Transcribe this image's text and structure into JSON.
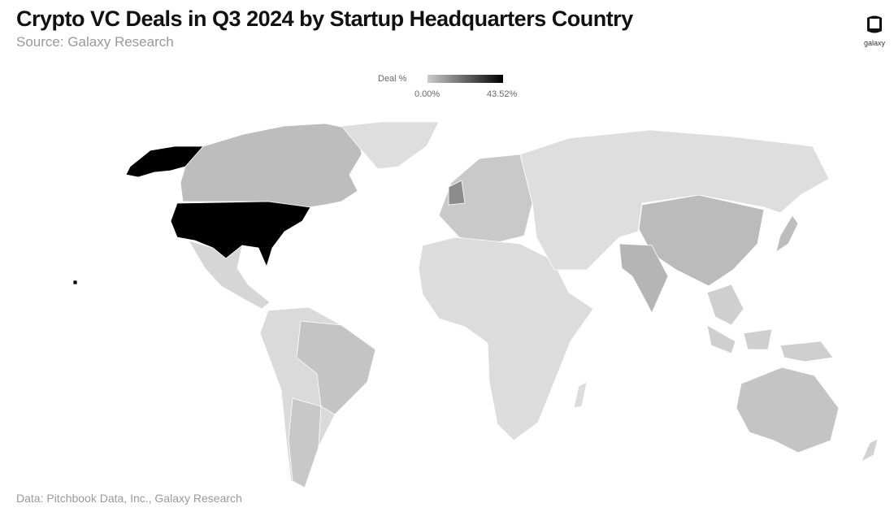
{
  "header": {
    "title": "Crypto VC Deals in Q3 2024 by Startup Headquarters Country",
    "subtitle": "Source: Galaxy Research"
  },
  "logo": {
    "text": "galaxy"
  },
  "footer": {
    "text": "Data: Pitchbook Data, Inc., Galaxy Research"
  },
  "chart_data": {
    "type": "choropleth",
    "legend": {
      "label": "Deal %",
      "min_label": "0.00%",
      "max_label": "43.52%",
      "min": 0,
      "max": 43.52,
      "min_color": "#cccccc",
      "max_color": "#000000"
    },
    "regions": [
      {
        "name": "United States",
        "fill": "#000000",
        "value": 43.52
      },
      {
        "name": "Alaska",
        "fill": "#000000"
      },
      {
        "name": "Canada",
        "fill": "#bdbdbd"
      },
      {
        "name": "Greenland",
        "fill": "#dedede"
      },
      {
        "name": "Mexico and Central America",
        "fill": "#d6d6d6"
      },
      {
        "name": "South America",
        "fill": "#dadada"
      },
      {
        "name": "Brazil",
        "fill": "#c4c4c4"
      },
      {
        "name": "Argentina",
        "fill": "#c8c8c8"
      },
      {
        "name": "Europe",
        "fill": "#c9c9c9"
      },
      {
        "name": "United Kingdom",
        "fill": "#8c8c8c"
      },
      {
        "name": "Africa",
        "fill": "#dcdcdc"
      },
      {
        "name": "Russia and Central Asia",
        "fill": "#dedede"
      },
      {
        "name": "China",
        "fill": "#bbbbbb"
      },
      {
        "name": "India",
        "fill": "#b5b5b5"
      },
      {
        "name": "Japan",
        "fill": "#bdbdbd"
      },
      {
        "name": "Southeast Asia",
        "fill": "#cfcfcf"
      },
      {
        "name": "Australia",
        "fill": "#c4c4c4"
      },
      {
        "name": "New Zealand",
        "fill": "#d2d2d2"
      },
      {
        "name": "Madagascar",
        "fill": "#dcdcdc"
      }
    ]
  }
}
